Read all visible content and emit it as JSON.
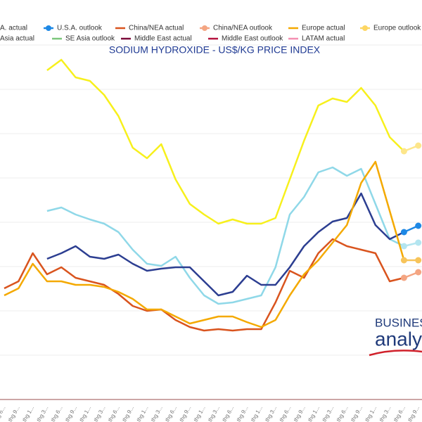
{
  "chart_data": {
    "type": "line",
    "title": "SODIUM HYDROXIDE - US$/KG PRICE INDEX",
    "legend": [
      {
        "name": "A. actual",
        "color": "#2c3e91",
        "marker": "line"
      },
      {
        "name": "U.S.A. outlook",
        "color": "#1e88e5",
        "marker": "dot"
      },
      {
        "name": "China/NEA actual",
        "color": "#d9541e",
        "marker": "line"
      },
      {
        "name": "China/NEA outlook",
        "color": "#f4a582",
        "marker": "dot"
      },
      {
        "name": "Europe actual",
        "color": "#f4a900",
        "marker": "line"
      },
      {
        "name": "Europe outlook",
        "color": "#fdd663",
        "marker": "dot"
      },
      {
        "name": "Asia actual",
        "color": "#8fd8e8",
        "marker": "line"
      },
      {
        "name": "SE Asia outlook",
        "color": "#7bc67b",
        "marker": "line"
      },
      {
        "name": "Middle East actual",
        "color": "#7b0a3a",
        "marker": "line"
      },
      {
        "name": "Middle East outlook",
        "color": "#b5123e",
        "marker": "line"
      },
      {
        "name": "LATAM actual",
        "color": "#f48fb1",
        "marker": "line"
      }
    ],
    "categories": [
      "thg 6...",
      "thg 9...",
      "thg 1...",
      "thg 3...",
      "thg 6...",
      "thg 9...",
      "thg 1...",
      "thg 3...",
      "thg 6...",
      "thg 9...",
      "thg 1...",
      "thg 3...",
      "thg 6...",
      "thg 9...",
      "thg 1...",
      "thg 3...",
      "thg 6...",
      "thg 9...",
      "thg 1...",
      "thg 3...",
      "thg 6...",
      "thg 9...",
      "thg 1...",
      "thg 3...",
      "thg 6...",
      "thg 9...",
      "thg 1...",
      "thg 3...",
      "thg 6...",
      "thg 9..."
    ],
    "series": [
      {
        "color": "#f7f01c",
        "marker": "line",
        "values": [
          null,
          null,
          null,
          468,
          483,
          458,
          453,
          433,
          403,
          358,
          343,
          363,
          313,
          278,
          263,
          250,
          256,
          250,
          250,
          258,
          313,
          368,
          418,
          428,
          423,
          443,
          418,
          373,
          353,
          null
        ]
      },
      {
        "color": "#8fd8e8",
        "marker": "line",
        "values": [
          null,
          null,
          null,
          268,
          273,
          263,
          256,
          250,
          238,
          213,
          193,
          190,
          203,
          173,
          148,
          136,
          138,
          143,
          148,
          188,
          263,
          288,
          323,
          330,
          318,
          328,
          278,
          228,
          218,
          null
        ]
      },
      {
        "color": "#2c3e91",
        "marker": "line",
        "values": [
          null,
          null,
          null,
          200,
          208,
          218,
          203,
          200,
          206,
          193,
          183,
          186,
          188,
          188,
          168,
          148,
          153,
          176,
          163,
          163,
          188,
          218,
          238,
          253,
          258,
          293,
          248,
          228,
          238,
          null
        ]
      },
      {
        "color": "#d9541e",
        "marker": "line",
        "values": [
          158,
          168,
          208,
          178,
          188,
          173,
          168,
          163,
          150,
          133,
          126,
          128,
          113,
          103,
          98,
          100,
          98,
          100,
          100,
          138,
          183,
          173,
          208,
          228,
          218,
          213,
          208,
          168,
          173,
          null
        ]
      },
      {
        "color": "#f4a900",
        "marker": "line",
        "values": [
          148,
          158,
          193,
          168,
          168,
          163,
          163,
          160,
          153,
          143,
          128,
          128,
          118,
          108,
          113,
          118,
          118,
          110,
          103,
          113,
          148,
          178,
          198,
          223,
          248,
          308,
          338,
          268,
          198,
          null
        ]
      },
      {
        "color": "#fde68a",
        "marker": "dot",
        "values": [
          null,
          null,
          null,
          null,
          null,
          null,
          null,
          null,
          null,
          null,
          null,
          null,
          null,
          null,
          null,
          null,
          null,
          null,
          null,
          null,
          null,
          null,
          null,
          null,
          null,
          null,
          null,
          null,
          353,
          361
        ]
      },
      {
        "color": "#b3e5f0",
        "marker": "dot",
        "values": [
          null,
          null,
          null,
          null,
          null,
          null,
          null,
          null,
          null,
          null,
          null,
          null,
          null,
          null,
          null,
          null,
          null,
          null,
          null,
          null,
          null,
          null,
          null,
          null,
          null,
          null,
          null,
          null,
          218,
          223
        ]
      },
      {
        "color": "#1e88e5",
        "marker": "dot",
        "values": [
          null,
          null,
          null,
          null,
          null,
          null,
          null,
          null,
          null,
          null,
          null,
          null,
          null,
          null,
          null,
          null,
          null,
          null,
          null,
          null,
          null,
          null,
          null,
          null,
          null,
          null,
          null,
          null,
          238,
          247
        ]
      },
      {
        "color": "#f4a582",
        "marker": "dot",
        "values": [
          null,
          null,
          null,
          null,
          null,
          null,
          null,
          null,
          null,
          null,
          null,
          null,
          null,
          null,
          null,
          null,
          null,
          null,
          null,
          null,
          null,
          null,
          null,
          null,
          null,
          null,
          null,
          null,
          173,
          181
        ]
      },
      {
        "color": "#f7c45a",
        "marker": "dot",
        "values": [
          null,
          null,
          null,
          null,
          null,
          null,
          null,
          null,
          null,
          null,
          null,
          null,
          null,
          null,
          null,
          null,
          null,
          null,
          null,
          null,
          null,
          null,
          null,
          null,
          null,
          null,
          null,
          null,
          198,
          198
        ]
      }
    ],
    "ylim": [
      0,
      504
    ],
    "yticks": [
      63,
      126,
      189,
      252,
      315,
      378,
      441,
      504
    ],
    "grid": true,
    "watermark": [
      "BUSINESS",
      "analy"
    ]
  }
}
